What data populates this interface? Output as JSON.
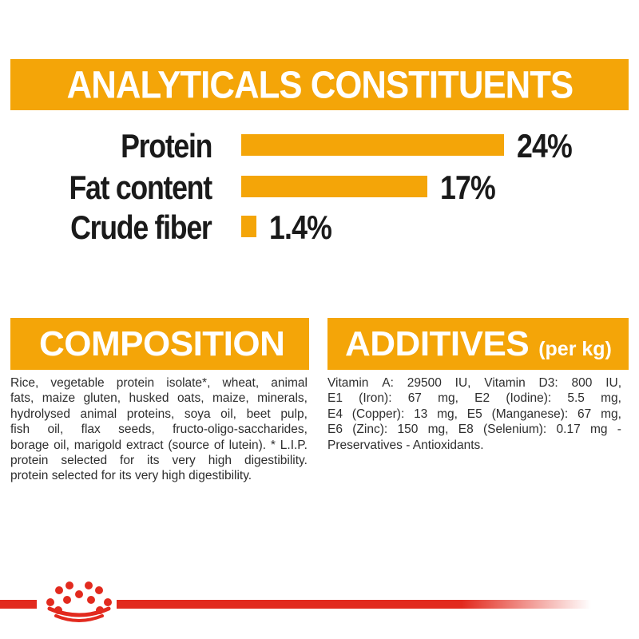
{
  "colors": {
    "accent_orange": "#F4A508",
    "brand_red": "#E22A1E",
    "heading_text": "#FFFFFF",
    "label_text": "#1A1A1A",
    "body_text": "#2E2E2E"
  },
  "header": {
    "title": "ANALYTICALS CONSTITUENTS"
  },
  "chart_data": {
    "type": "bar",
    "orientation": "horizontal",
    "title": "ANALYTICALS CONSTITUENTS",
    "categories": [
      "Protein",
      "Fat content",
      "Crude fiber"
    ],
    "values": [
      24,
      17,
      1.4
    ],
    "value_labels": [
      "24%",
      "17%",
      "1.4%"
    ],
    "unit": "%",
    "xlim": [
      0,
      25
    ],
    "grid": false,
    "legend": false,
    "bar_color": "#F4A508"
  },
  "composition": {
    "heading": "COMPOSITION",
    "lines": [
      "Rice, vegetable protein isolate*, wheat, animal",
      "fats, maize gluten, husked oats, maize, minerals,",
      "hydrolysed animal proteins, soya oil, beet pulp,",
      "fish oil, flax seeds, fructo-oligo-saccharides,",
      "borage oil, marigold extract (source of lutein). * L.I.P.",
      "protein selected for its very high digestibility.",
      "protein selected for its very high digestibility."
    ]
  },
  "additives": {
    "heading": "ADDITIVES",
    "heading_suffix": "(per kg)",
    "lines": [
      "Vitamin A: 29500 IU, Vitamin D3: 800 IU,",
      "E1 (Iron): 67 mg, E2 (Iodine): 5.5 mg,",
      "E4 (Copper): 13 mg, E5 (Manganese): 67 mg,",
      "E6 (Zinc): 150 mg, E8 (Selenium): 0.17 mg -",
      "Preservatives - Antioxidants."
    ]
  },
  "footer": {
    "logo_icon": "royal-canin-crown-logo"
  }
}
